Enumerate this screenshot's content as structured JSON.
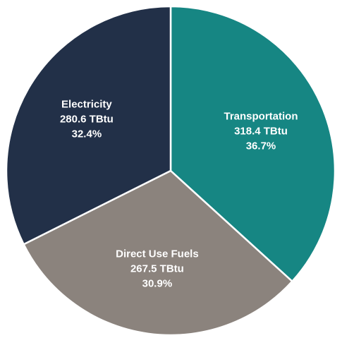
{
  "chart_data": {
    "type": "pie",
    "title": "",
    "legend": "none",
    "slices": [
      {
        "label": "Transportation",
        "value": 318.4,
        "value_text": "318.4 TBtu",
        "percent": 36.7,
        "percent_text": "36.7%",
        "color": "#168683"
      },
      {
        "label": "Direct Use Fuels",
        "value": 267.5,
        "value_text": "267.5 TBtu",
        "percent": 30.9,
        "percent_text": "30.9%",
        "color": "#8b837d"
      },
      {
        "label": "Electricity",
        "value": 280.6,
        "value_text": "280.6 TBtu",
        "percent": 32.4,
        "percent_text": "32.4%",
        "color": "#223048"
      }
    ]
  }
}
